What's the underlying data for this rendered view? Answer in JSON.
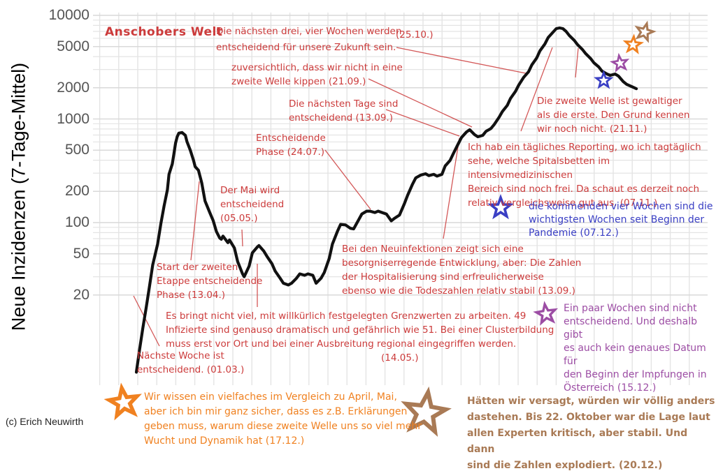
{
  "title": "Anschobers Welt",
  "credit": "(c) Erich Neuwirth",
  "y_axis": {
    "label": "Neue Inzidenzen (7-Tage-Mittel)",
    "tick_labels": [
      "10000",
      "5000",
      "2000",
      "1000",
      "500",
      "200",
      "100",
      "50",
      "20"
    ]
  },
  "colors": {
    "annotation_red": "#cc3b3b",
    "curve_black": "#111111",
    "grid_gray": "#e4e4e4",
    "quote_blue": "#3a3fc4",
    "quote_purple": "#9c4da4",
    "quote_orange": "#f08120",
    "quote_brown": "#a97a55"
  },
  "annotations": {
    "r1": {
      "text": "Die nächsten drei, vier Wochen werden\nentscheidend für unsere Zukunft sein.",
      "date_label": "(25.10.)"
    },
    "r2": {
      "text": "zuversichtlich, dass wir nicht in eine\nzweite Welle kippen (21.09.)"
    },
    "r3": {
      "text": "Die nächsten Tage sind\nentscheidend (13.09.)"
    },
    "r4": {
      "text": "Entscheidende\nPhase (24.07.)"
    },
    "r5": {
      "text": "Der Mai wird\nentscheidend\n(05.05.)"
    },
    "r6": {
      "text": "Start der zweiten\nEtappe entscheidende\nPhase (13.04.)"
    },
    "r7": {
      "text": "Nächste Woche ist\nentscheidend. (01.03.)"
    },
    "r8": {
      "text": "Es bringt nicht viel, mit willkürlich festgelegten Grenzwerten zu arbeiten. 49\nInfizierte sind genauso dramatisch und gefährlich wie 51. Bei einer Clusterbildung\nmuss erst vor Ort und bei einer Ausbreitung regional eingegriffen werden.",
      "date_label": "(14.05.)"
    },
    "r9": {
      "text": "Bei den Neuinfektionen zeigt sich eine\nbesorgniserregende Entwicklung, aber: Die Zahlen\nder Hospitalisierung sind erfreulicherweise\nebenso wie die Todeszahlen relativ stabil (13.09.)"
    },
    "r10": {
      "text": "Die zweite Welle ist gewaltiger\nals die erste. Den Grund kennen\nwir noch nicht. (21.11.)"
    },
    "r11": {
      "text": "Ich hab ein tägliches Reporting, wo ich tagtäglich\nsehe, welche Spitalsbetten im intensivmedizinischen\nBereich sind noch frei. Da schaut es derzeit noch\nrelativ vergleichsweise gut aus. (07.11.)"
    }
  },
  "quotes": {
    "blue": {
      "color": "#3a3fc4",
      "star": "blue-star",
      "text": "die kommenden vier Wochen sind die\nwichtigsten Wochen seit Beginn der\nPandemie (07.12.)"
    },
    "purple": {
      "color": "#9c4da4",
      "star": "purple-star",
      "text": "Ein paar Wochen sind nicht\nentscheidend. Und deshalb gibt\nes auch kein genaues Datum für\nden Beginn der Impfungen in\nÖsterreich (15.12.)"
    },
    "orange": {
      "color": "#f08120",
      "star": "orange-star",
      "text": "Wir wissen ein vielfaches im Vergleich zu April, Mai,\naber ich bin mir ganz sicher, dass es z.B. Erklärungen\ngeben muss, warum diese zweite Welle uns so viel mehr\nWucht und Dynamik hat (17.12.)"
    },
    "brown": {
      "color": "#a97a55",
      "star": "brown-star",
      "text": "Hätten wir versagt, würden wir völlig anders\ndastehen. Bis 22. Oktober war die Lage laut\nallen Experten kritisch, aber stabil. Und dann\nsind die Zahlen explodiert. (20.12.)"
    }
  },
  "chart_data": {
    "type": "line",
    "title": "Anschobers Welt",
    "ylabel": "Neue Inzidenzen (7-Tage-Mittel)",
    "y_scale": "log10",
    "ylim": [
      3,
      10000
    ],
    "y_ticks": [
      10000,
      5000,
      2000,
      1000,
      500,
      200,
      100,
      50,
      20
    ],
    "y_gridlines_major": [
      20,
      50,
      100,
      200,
      500,
      1000,
      2000,
      5000,
      10000
    ],
    "y_gridlines_minor": [
      30,
      40,
      60,
      70,
      80,
      90,
      300,
      400,
      600,
      700,
      800,
      900,
      3000,
      4000,
      6000,
      7000,
      8000,
      9000
    ],
    "x_range": [
      "2020-02-25",
      "2020-12-27"
    ],
    "grid": "on",
    "legend_position": "none",
    "series": [
      {
        "name": "Neue Inzidenzen (7-Tage-Mittel)",
        "color": "#111111",
        "points": [
          [
            "2020-02-25",
            3.6
          ],
          [
            "2020-02-27",
            6
          ],
          [
            "2020-02-29",
            9.6
          ],
          [
            "2020-03-02",
            15
          ],
          [
            "2020-03-04",
            24
          ],
          [
            "2020-03-06",
            39
          ],
          [
            "2020-03-09",
            62
          ],
          [
            "2020-03-11",
            98
          ],
          [
            "2020-03-13",
            145
          ],
          [
            "2020-03-15",
            207
          ],
          [
            "2020-03-16",
            292
          ],
          [
            "2020-03-18",
            368
          ],
          [
            "2020-03-19",
            464
          ],
          [
            "2020-03-20",
            586
          ],
          [
            "2020-03-21",
            673
          ],
          [
            "2020-03-22",
            730
          ],
          [
            "2020-03-24",
            740
          ],
          [
            "2020-03-26",
            695
          ],
          [
            "2020-03-27",
            604
          ],
          [
            "2020-03-29",
            501
          ],
          [
            "2020-03-31",
            398
          ],
          [
            "2020-04-01",
            347
          ],
          [
            "2020-04-03",
            320
          ],
          [
            "2020-04-05",
            242
          ],
          [
            "2020-04-07",
            162
          ],
          [
            "2020-04-10",
            124
          ],
          [
            "2020-04-12",
            105
          ],
          [
            "2020-04-14",
            82
          ],
          [
            "2020-04-16",
            71
          ],
          [
            "2020-04-17",
            69
          ],
          [
            "2020-04-18",
            74
          ],
          [
            "2020-04-21",
            64
          ],
          [
            "2020-04-22",
            68
          ],
          [
            "2020-04-25",
            57
          ],
          [
            "2020-04-27",
            42
          ],
          [
            "2020-04-30",
            32
          ],
          [
            "2020-05-01",
            30
          ],
          [
            "2020-05-04",
            38
          ],
          [
            "2020-05-06",
            51
          ],
          [
            "2020-05-09",
            58
          ],
          [
            "2020-05-10",
            60
          ],
          [
            "2020-05-13",
            53
          ],
          [
            "2020-05-15",
            47
          ],
          [
            "2020-05-18",
            40
          ],
          [
            "2020-05-20",
            34
          ],
          [
            "2020-05-23",
            29
          ],
          [
            "2020-05-25",
            26
          ],
          [
            "2020-05-28",
            25
          ],
          [
            "2020-05-30",
            26
          ],
          [
            "2020-06-02",
            29
          ],
          [
            "2020-06-04",
            32
          ],
          [
            "2020-06-07",
            31
          ],
          [
            "2020-06-09",
            32
          ],
          [
            "2020-06-12",
            31
          ],
          [
            "2020-06-14",
            26
          ],
          [
            "2020-06-17",
            29
          ],
          [
            "2020-06-19",
            33
          ],
          [
            "2020-06-22",
            45
          ],
          [
            "2020-06-24",
            62
          ],
          [
            "2020-06-27",
            82
          ],
          [
            "2020-06-29",
            96
          ],
          [
            "2020-07-02",
            95
          ],
          [
            "2020-07-05",
            88
          ],
          [
            "2020-07-07",
            87
          ],
          [
            "2020-07-10",
            106
          ],
          [
            "2020-07-12",
            121
          ],
          [
            "2020-07-15",
            129
          ],
          [
            "2020-07-17",
            129
          ],
          [
            "2020-07-20",
            125
          ],
          [
            "2020-07-22",
            129
          ],
          [
            "2020-07-25",
            124
          ],
          [
            "2020-07-27",
            121
          ],
          [
            "2020-07-30",
            104
          ],
          [
            "2020-08-01",
            110
          ],
          [
            "2020-08-04",
            118
          ],
          [
            "2020-08-07",
            152
          ],
          [
            "2020-08-09",
            183
          ],
          [
            "2020-08-12",
            235
          ],
          [
            "2020-08-14",
            270
          ],
          [
            "2020-08-17",
            287
          ],
          [
            "2020-08-20",
            296
          ],
          [
            "2020-08-22",
            284
          ],
          [
            "2020-08-25",
            292
          ],
          [
            "2020-08-27",
            281
          ],
          [
            "2020-08-30",
            292
          ],
          [
            "2020-09-01",
            352
          ],
          [
            "2020-09-04",
            398
          ],
          [
            "2020-09-06",
            464
          ],
          [
            "2020-09-09",
            577
          ],
          [
            "2020-09-11",
            664
          ],
          [
            "2020-09-14",
            748
          ],
          [
            "2020-09-16",
            787
          ],
          [
            "2020-09-19",
            706
          ],
          [
            "2020-09-21",
            673
          ],
          [
            "2020-09-24",
            695
          ],
          [
            "2020-09-26",
            760
          ],
          [
            "2020-09-29",
            808
          ],
          [
            "2020-10-01",
            885
          ],
          [
            "2020-10-04",
            1040
          ],
          [
            "2020-10-06",
            1180
          ],
          [
            "2020-10-09",
            1352
          ],
          [
            "2020-10-11",
            1582
          ],
          [
            "2020-10-14",
            1845
          ],
          [
            "2020-10-16",
            2124
          ],
          [
            "2020-10-19",
            2518
          ],
          [
            "2020-10-22",
            2851
          ],
          [
            "2020-10-24",
            3327
          ],
          [
            "2020-10-27",
            3881
          ],
          [
            "2020-10-29",
            4539
          ],
          [
            "2020-11-01",
            5297
          ],
          [
            "2020-11-03",
            6095
          ],
          [
            "2020-11-06",
            6887
          ],
          [
            "2020-11-08",
            7447
          ],
          [
            "2020-11-10",
            7568
          ],
          [
            "2020-11-12",
            7450
          ],
          [
            "2020-11-14",
            6998
          ],
          [
            "2020-11-16",
            6383
          ],
          [
            "2020-11-19",
            5728
          ],
          [
            "2020-11-21",
            5212
          ],
          [
            "2020-11-24",
            4677
          ],
          [
            "2020-11-26",
            4266
          ],
          [
            "2020-11-29",
            3828
          ],
          [
            "2020-12-01",
            3483
          ],
          [
            "2020-12-04",
            3177
          ],
          [
            "2020-12-06",
            2891
          ],
          [
            "2020-12-09",
            2716
          ],
          [
            "2020-12-11",
            2636
          ],
          [
            "2020-12-14",
            2716
          ],
          [
            "2020-12-16",
            2600
          ],
          [
            "2020-12-19",
            2291
          ],
          [
            "2020-12-21",
            2160
          ],
          [
            "2020-12-24",
            2060
          ],
          [
            "2020-12-27",
            1960
          ]
        ]
      }
    ],
    "event_stars": [
      {
        "color_name": "blue",
        "hex": "#3a3fc4",
        "date": "2020-12-07",
        "value": 2350,
        "quote_date": "07.12."
      },
      {
        "color_name": "purple",
        "hex": "#9c4da4",
        "date": "2020-12-17",
        "value": 3450,
        "quote_date": "15.12."
      },
      {
        "color_name": "orange",
        "hex": "#f08120",
        "date": "2020-12-25",
        "value": 5200,
        "quote_date": "17.12."
      },
      {
        "color_name": "brown",
        "hex": "#a97a55",
        "date": "2021-01-01",
        "value": 6900,
        "quote_date": "20.12."
      }
    ]
  }
}
